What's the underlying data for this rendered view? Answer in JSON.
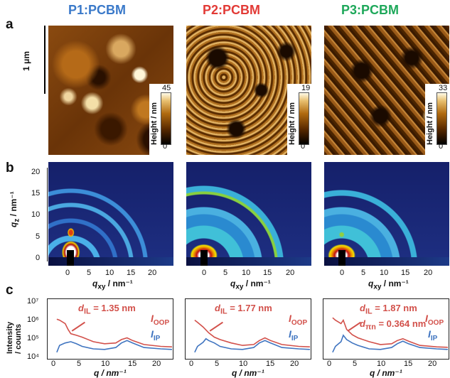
{
  "figure": {
    "titles": [
      {
        "text": "P1:PCBM",
        "color": "#3a79c9"
      },
      {
        "text": "P2:PCBM",
        "color": "#e23a36"
      },
      {
        "text": "P3:PCBM",
        "color": "#1ea85a"
      }
    ],
    "panel_labels": {
      "a": "a",
      "b": "b",
      "c": "c"
    },
    "scale_bar": "1 μm",
    "afm": {
      "colorbar_label": "Height / nm",
      "maxima": [
        "45",
        "19",
        "33"
      ],
      "min": "0"
    },
    "giwaxs": {
      "ylabel": "q",
      "ylabel_sub": "z",
      "ylabel_unit": " / nm⁻¹",
      "xlabel": "q",
      "xlabel_sub": "xy",
      "xlabel_unit": " / nm⁻¹",
      "yticks": [
        "20",
        "15",
        "10",
        "5",
        "0"
      ],
      "xticks": [
        "0",
        "5",
        "10",
        "15",
        "20"
      ]
    },
    "profiles": {
      "ylabel_line1": "Intensity",
      "ylabel_line2": "/ counts",
      "yticks": [
        "10⁷",
        "10⁶",
        "10⁵",
        "10⁴"
      ],
      "xticks": [
        "0",
        "5",
        "10",
        "15",
        "20"
      ],
      "xlabel": "q / nm⁻¹",
      "ioop": "I",
      "ioop_sub": "OOP",
      "iip": "I",
      "iip_sub": "IP",
      "annotations": [
        {
          "d_il": "d",
          "d_il_sub": "IL",
          "d_il_value": " = 1.35 nm"
        },
        {
          "d_il": "d",
          "d_il_sub": "IL",
          "d_il_value": " = 1.77 nm"
        },
        {
          "d_il": "d",
          "d_il_sub": "IL",
          "d_il_value": " = 1.87 nm",
          "d_pp": "d",
          "d_pp_sub": "πn",
          "d_pp_value": " = 0.364 nm"
        }
      ],
      "colors": {
        "oop": "#d2504a",
        "ip": "#3f74c0"
      }
    }
  },
  "chart_data": [
    {
      "type": "line",
      "title": "",
      "xlabel": "q / nm⁻¹",
      "ylabel": "Intensity / counts",
      "xlim": [
        0,
        22
      ],
      "ylim": [
        10000,
        10000000
      ],
      "yscale": "log",
      "series": [
        {
          "name": "I_OOP",
          "x": [
            1.5,
            2,
            3,
            3.5,
            4,
            5,
            6,
            8,
            10,
            12,
            13,
            14,
            15,
            17,
            20,
            22
          ],
          "y": [
            1000000,
            900000,
            600000,
            300000,
            180000,
            150000,
            120000,
            70000,
            55000,
            60000,
            90000,
            110000,
            80000,
            50000,
            40000,
            38000
          ]
        },
        {
          "name": "I_IP",
          "x": [
            1.5,
            2,
            3,
            4,
            5,
            6,
            8,
            10,
            12,
            13,
            14,
            15,
            17,
            20,
            22
          ],
          "y": [
            20000,
            45000,
            60000,
            70000,
            55000,
            40000,
            30000,
            28000,
            35000,
            60000,
            80000,
            60000,
            35000,
            30000,
            28000
          ]
        }
      ]
    },
    {
      "type": "line",
      "title": "",
      "xlabel": "q / nm⁻¹",
      "ylabel": "",
      "xlim": [
        0,
        22
      ],
      "ylim": [
        10000,
        10000000
      ],
      "yscale": "log",
      "series": [
        {
          "name": "I_OOP",
          "x": [
            1.5,
            2,
            3,
            4,
            5,
            6,
            8,
            10,
            12,
            13,
            14,
            15,
            17,
            20,
            22
          ],
          "y": [
            900000,
            700000,
            400000,
            200000,
            120000,
            90000,
            60000,
            45000,
            50000,
            80000,
            110000,
            80000,
            50000,
            40000,
            38000
          ]
        },
        {
          "name": "I_IP",
          "x": [
            1.5,
            2,
            3,
            3.5,
            4,
            5,
            6,
            8,
            10,
            12,
            13,
            14,
            15,
            17,
            20,
            22
          ],
          "y": [
            20000,
            40000,
            65000,
            100000,
            80000,
            60000,
            40000,
            30000,
            28000,
            35000,
            60000,
            80000,
            60000,
            35000,
            30000,
            28000
          ]
        }
      ]
    },
    {
      "type": "line",
      "title": "",
      "xlabel": "q / nm⁻¹",
      "ylabel": "",
      "xlim": [
        0,
        22
      ],
      "ylim": [
        10000,
        10000000
      ],
      "yscale": "log",
      "series": [
        {
          "name": "I_OOP",
          "x": [
            1.5,
            2,
            3,
            3.4,
            4,
            5,
            6,
            8,
            10,
            12,
            13,
            14,
            15,
            17,
            20,
            22
          ],
          "y": [
            1200000,
            900000,
            600000,
            900000,
            300000,
            160000,
            110000,
            70000,
            50000,
            55000,
            80000,
            100000,
            75000,
            45000,
            38000,
            36000
          ]
        },
        {
          "name": "I_IP",
          "x": [
            1.5,
            2,
            3,
            3.4,
            4,
            5,
            6,
            8,
            10,
            12,
            13,
            14,
            15,
            17,
            20,
            22
          ],
          "y": [
            20000,
            40000,
            70000,
            150000,
            90000,
            60000,
            45000,
            30000,
            28000,
            35000,
            55000,
            75000,
            55000,
            35000,
            30000,
            28000
          ]
        }
      ]
    }
  ]
}
